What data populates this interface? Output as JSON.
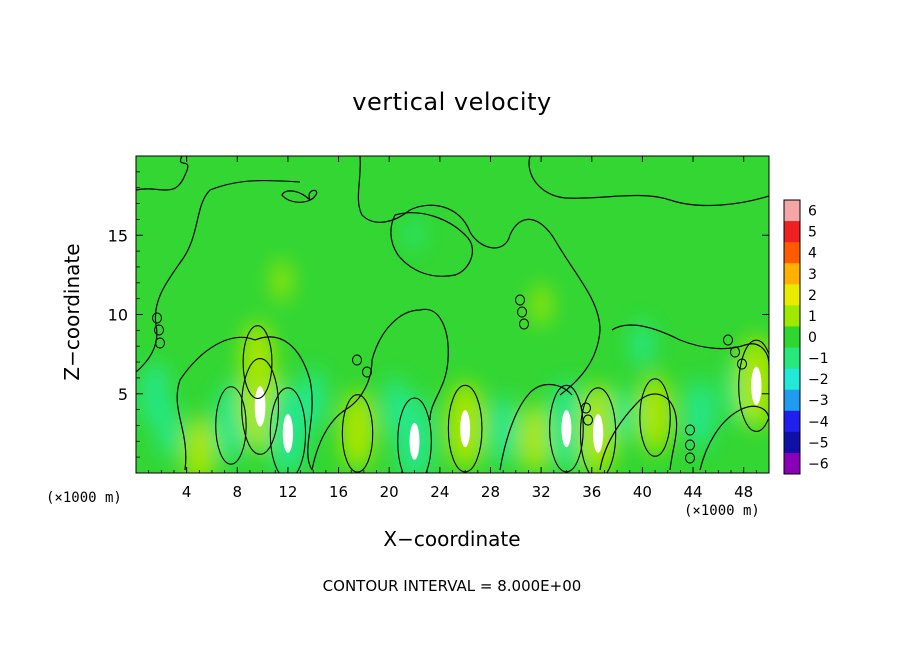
{
  "chart_data": {
    "type": "heatmap",
    "title": "vertical velocity",
    "xlabel": "X−coordinate",
    "ylabel": "Z−coordinate",
    "x_unit_label": "(×1000 m)",
    "x_ticks": [
      4,
      8,
      12,
      16,
      20,
      24,
      28,
      32,
      36,
      40,
      44,
      48
    ],
    "x_tick_labels": [
      "4",
      "8",
      "12",
      "16",
      "20",
      "24",
      "28",
      "32",
      "36",
      "40",
      "44",
      "48"
    ],
    "y_ticks": [
      5,
      10,
      15
    ],
    "y_tick_labels": [
      "5",
      "10",
      "15"
    ],
    "xlim": [
      0,
      50
    ],
    "ylim": [
      0,
      20
    ],
    "colorbar": {
      "ticks": [
        6,
        5,
        4,
        3,
        2,
        1,
        0,
        -1,
        -2,
        -3,
        -4,
        -5,
        -6
      ],
      "tick_labels": [
        "6",
        "5",
        "4",
        "3",
        "2",
        "1",
        "0",
        "−1",
        "−2",
        "−3",
        "−4",
        "−5",
        "−6"
      ],
      "colors": [
        "#f4a6a6",
        "#ee2020",
        "#ff5a00",
        "#ffb000",
        "#e8ea00",
        "#9fe800",
        "#2fd62f",
        "#27e87a",
        "#22e8d8",
        "#1f9cf0",
        "#2020ee",
        "#1010a8",
        "#8a00b8"
      ]
    },
    "velocity_centers": [
      {
        "x": 1.5,
        "z": 4.8,
        "w": -3
      },
      {
        "x": 2.6,
        "z": 2.5,
        "w": -2
      },
      {
        "x": 5.0,
        "z": 1.2,
        "w": 3.5
      },
      {
        "x": 7.5,
        "z": 3.0,
        "w": -4.5
      },
      {
        "x": 9.8,
        "z": 4.2,
        "w": 6.5
      },
      {
        "x": 9.6,
        "z": 7.0,
        "w": 4.0
      },
      {
        "x": 12.0,
        "z": 2.5,
        "w": -6
      },
      {
        "x": 14.0,
        "z": 4.5,
        "w": -2.5
      },
      {
        "x": 17.5,
        "z": 2.5,
        "w": 4.5
      },
      {
        "x": 20.5,
        "z": 4.0,
        "w": -2.5
      },
      {
        "x": 22.0,
        "z": 2.0,
        "w": -5.5
      },
      {
        "x": 26.0,
        "z": 2.8,
        "w": 5.5
      },
      {
        "x": 29.0,
        "z": 2.5,
        "w": -3.5
      },
      {
        "x": 31.5,
        "z": 2.0,
        "w": 3.5
      },
      {
        "x": 34.0,
        "z": 2.8,
        "w": -5.5
      },
      {
        "x": 36.5,
        "z": 2.5,
        "w": 6.0
      },
      {
        "x": 38.5,
        "z": 3.5,
        "w": -2.0
      },
      {
        "x": 41.0,
        "z": 3.5,
        "w": 4.5
      },
      {
        "x": 44.5,
        "z": 3.5,
        "w": -3.5
      },
      {
        "x": 47.5,
        "z": 5.0,
        "w": -2.5
      },
      {
        "x": 49.0,
        "z": 5.5,
        "w": 6.0
      },
      {
        "x": 11.5,
        "z": 12.0,
        "w": 1.0
      },
      {
        "x": 32.0,
        "z": 10.5,
        "w": 1.0
      },
      {
        "x": 40.0,
        "z": 8.0,
        "w": -1.5
      },
      {
        "x": 22.0,
        "z": 15.0,
        "w": -0.6
      }
    ],
    "contour_interval_label": "CONTOUR INTERVAL = 8.000E+00"
  }
}
